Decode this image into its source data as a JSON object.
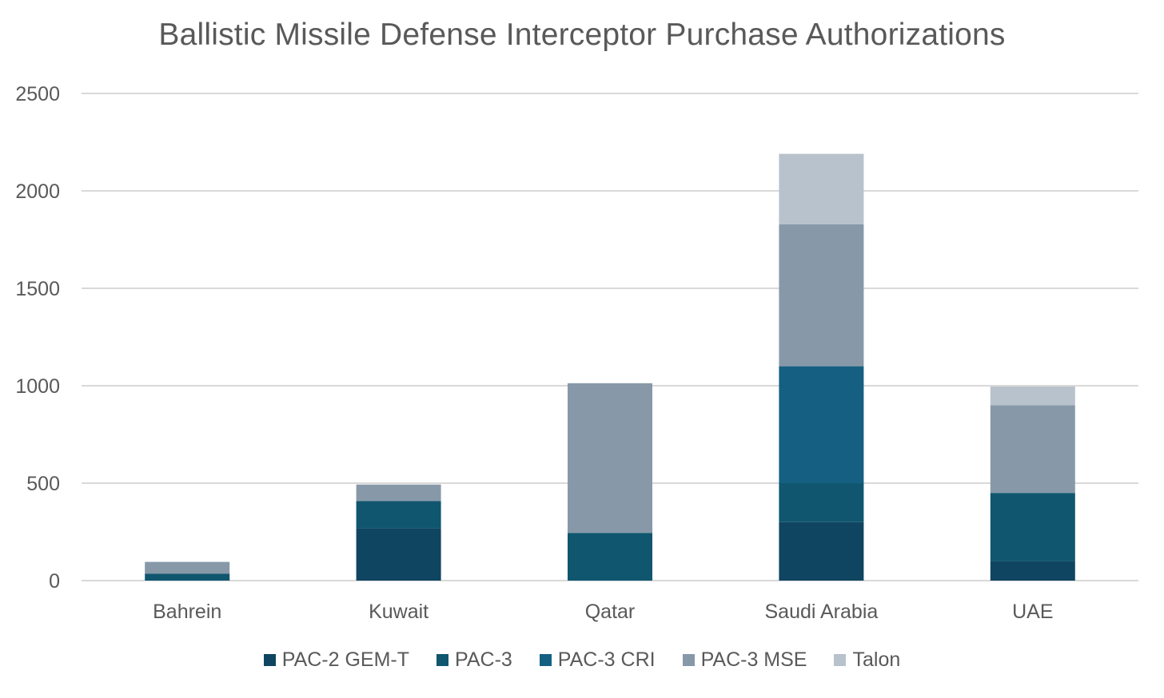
{
  "chart_data": {
    "type": "bar",
    "stacked": true,
    "title": "Ballistic Missile Defense Interceptor Purchase Authorizations",
    "xlabel": "",
    "ylabel": "",
    "ylim": [
      0,
      2500
    ],
    "yticks": [
      0,
      500,
      1000,
      1500,
      2000,
      2500
    ],
    "grid": true,
    "legend_position": "bottom",
    "categories": [
      "Bahrein",
      "Kuwait",
      "Qatar",
      "Saudi Arabia",
      "UAE"
    ],
    "series": [
      {
        "name": "PAC-2 GEM-T",
        "color": "#0f4561",
        "values": [
          0,
          268,
          0,
          300,
          100
        ]
      },
      {
        "name": "PAC-3",
        "color": "#10566f",
        "values": [
          36,
          140,
          245,
          200,
          350
        ]
      },
      {
        "name": "PAC-3 CRI",
        "color": "#156082",
        "values": [
          0,
          0,
          0,
          600,
          0
        ]
      },
      {
        "name": "PAC-3 MSE",
        "color": "#8799a8",
        "values": [
          60,
          85,
          768,
          728,
          450
        ]
      },
      {
        "name": "Talon",
        "color": "#b8c2cc",
        "values": [
          0,
          0,
          0,
          362,
          96
        ]
      }
    ]
  }
}
